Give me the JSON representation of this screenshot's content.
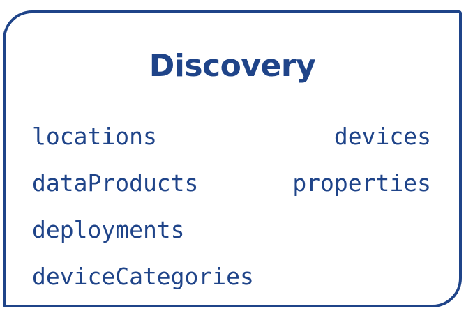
{
  "title": "Discovery",
  "items": [
    "locations",
    "devices",
    "dataProducts",
    "properties",
    "deployments",
    "deviceCategories"
  ],
  "colors": {
    "accent": "#1f4489",
    "background": "#ffffff"
  }
}
